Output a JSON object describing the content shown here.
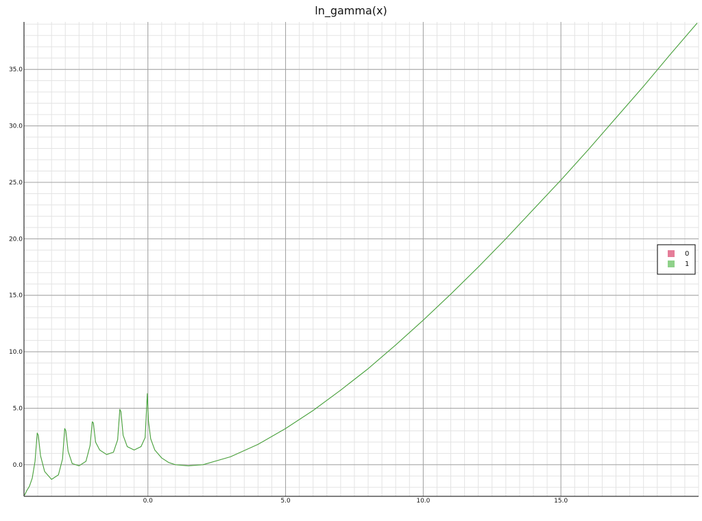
{
  "chart_data": {
    "type": "line",
    "title": "ln_gamma(x)",
    "xlabel": "",
    "ylabel": "",
    "xlim": [
      -4.5,
      20
    ],
    "ylim": [
      -2.8,
      39.2
    ],
    "x_ticks": [
      0,
      5,
      10,
      15
    ],
    "x_tick_labels": [
      "0.0",
      "5.0",
      "10.0",
      "15.0"
    ],
    "y_ticks": [
      0,
      5,
      10,
      15,
      20,
      25,
      30,
      35
    ],
    "y_tick_labels": [
      "0.0",
      "5.0",
      "10.0",
      "15.0",
      "20.0",
      "25.0",
      "30.0",
      "35.0"
    ],
    "grid": true,
    "legend_position": "right",
    "series": [
      {
        "name": "0",
        "color": "#e57d99",
        "x": [
          -4.48,
          -4.4,
          -4.3,
          -4.2,
          -4.1,
          -4.02,
          -3.98,
          -3.9,
          -3.75,
          -3.5,
          -3.25,
          -3.1,
          -3.02,
          -2.98,
          -2.9,
          -2.75,
          -2.5,
          -2.25,
          -2.1,
          -2.02,
          -1.98,
          -1.9,
          -1.75,
          -1.5,
          -1.25,
          -1.1,
          -1.02,
          -0.98,
          -0.9,
          -0.75,
          -0.5,
          -0.25,
          -0.1,
          -0.02,
          0.02,
          0.1,
          0.25,
          0.5,
          0.75,
          1,
          1.46,
          2,
          3,
          4,
          5,
          6,
          7,
          8,
          9,
          10,
          11,
          12,
          13,
          14,
          15,
          16,
          17,
          18,
          19,
          19.95
        ],
        "y": [
          -2.7,
          -2.3,
          -1.9,
          -1.2,
          0.3,
          2.8,
          2.6,
          0.8,
          -0.6,
          -1.3,
          -0.9,
          0.5,
          3.2,
          3.0,
          1.2,
          0.1,
          -0.1,
          0.3,
          1.7,
          3.8,
          3.7,
          2.0,
          1.3,
          0.9,
          1.1,
          2.2,
          4.9,
          4.7,
          2.6,
          1.6,
          1.3,
          1.6,
          2.4,
          6.3,
          3.9,
          2.3,
          1.3,
          0.6,
          0.2,
          0.0,
          -0.1,
          0.0,
          0.7,
          1.8,
          3.2,
          4.8,
          6.6,
          8.5,
          10.6,
          12.8,
          15.1,
          17.5,
          20.0,
          22.6,
          25.2,
          27.9,
          30.7,
          33.5,
          36.4,
          39.1
        ]
      },
      {
        "name": "1",
        "color": "#8fd18a",
        "x": [
          -4.48,
          -4.4,
          -4.3,
          -4.2,
          -4.1,
          -4.02,
          -3.98,
          -3.9,
          -3.75,
          -3.5,
          -3.25,
          -3.1,
          -3.02,
          -2.98,
          -2.9,
          -2.75,
          -2.5,
          -2.25,
          -2.1,
          -2.02,
          -1.98,
          -1.9,
          -1.75,
          -1.5,
          -1.25,
          -1.1,
          -1.02,
          -0.98,
          -0.9,
          -0.75,
          -0.5,
          -0.25,
          -0.1,
          -0.02,
          0.02,
          0.1,
          0.25,
          0.5,
          0.75,
          1,
          1.46,
          2,
          3,
          4,
          5,
          6,
          7,
          8,
          9,
          10,
          11,
          12,
          13,
          14,
          15,
          16,
          17,
          18,
          19,
          19.95
        ],
        "y": [
          -2.7,
          -2.3,
          -1.9,
          -1.2,
          0.3,
          2.8,
          2.6,
          0.8,
          -0.6,
          -1.3,
          -0.9,
          0.5,
          3.2,
          3.0,
          1.2,
          0.1,
          -0.1,
          0.3,
          1.7,
          3.8,
          3.7,
          2.0,
          1.3,
          0.9,
          1.1,
          2.2,
          4.9,
          4.7,
          2.6,
          1.6,
          1.3,
          1.6,
          2.4,
          6.3,
          3.9,
          2.3,
          1.3,
          0.6,
          0.2,
          0.0,
          -0.1,
          0.0,
          0.7,
          1.8,
          3.2,
          4.8,
          6.6,
          8.5,
          10.6,
          12.8,
          15.1,
          17.5,
          20.0,
          22.6,
          25.2,
          27.9,
          30.7,
          33.5,
          36.4,
          39.1
        ]
      }
    ],
    "line_color": "#3aa63a"
  }
}
